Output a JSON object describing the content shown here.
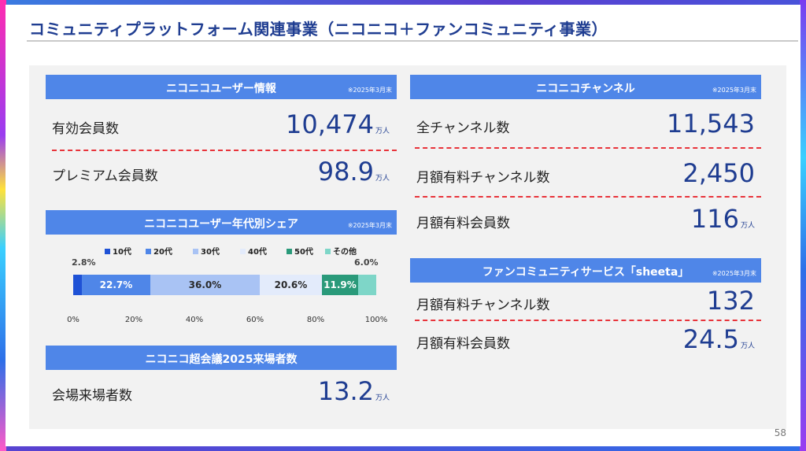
{
  "title": "コミュニティプラットフォーム関連事業（ニコニコ＋ファンコミュニティ事業）",
  "page_number": "58",
  "user_info": {
    "header": "ニコニコユーザー情報",
    "note": "※2025年3月末",
    "rows": [
      {
        "label": "有効会員数",
        "value": "10,474",
        "unit": "万人"
      },
      {
        "label": "プレミアム会員数",
        "value": "98.9",
        "unit": "万人"
      }
    ]
  },
  "age_share": {
    "header": "ニコニコユーザー年代別シェア",
    "note": "※2025年3月末"
  },
  "chart_data": {
    "type": "bar",
    "orientation": "horizontal-stacked",
    "series": [
      {
        "name": "10代",
        "value": 2.8,
        "label": "2.8%",
        "color": "#1f52d6"
      },
      {
        "name": "20代",
        "value": 22.7,
        "label": "22.7%",
        "color": "#4f86e8"
      },
      {
        "name": "30代",
        "value": 36.0,
        "label": "36.0%",
        "color": "#a9c3f4"
      },
      {
        "name": "40代",
        "value": 20.6,
        "label": "20.6%",
        "color": "#e3ebfb"
      },
      {
        "name": "50代",
        "value": 11.9,
        "label": "11.9%",
        "color": "#2a9a7a"
      },
      {
        "name": "その他",
        "value": 6.0,
        "label": "6.0%",
        "color": "#7ed6c8"
      }
    ],
    "xticks": [
      "0%",
      "20%",
      "40%",
      "60%",
      "80%",
      "100%"
    ],
    "xlim": [
      0,
      100
    ]
  },
  "chokaigi": {
    "header": "ニコニコ超会議2025来場者数",
    "label": "会場来場者数",
    "value": "13.2",
    "unit": "万人"
  },
  "channel": {
    "header": "ニコニコチャンネル",
    "note": "※2025年3月末",
    "rows": [
      {
        "label": "全チャンネル数",
        "value": "11,543",
        "unit": ""
      },
      {
        "label": "月額有料チャンネル数",
        "value": "2,450",
        "unit": ""
      },
      {
        "label": "月額有料会員数",
        "value": "116",
        "unit": "万人"
      }
    ]
  },
  "sheeta": {
    "header": "ファンコミュニティサービス「sheeta」",
    "note": "※2025年3月末",
    "rows": [
      {
        "label": "月額有料チャンネル数",
        "value": "132",
        "unit": ""
      },
      {
        "label": "月額有料会員数",
        "value": "24.5",
        "unit": "万人"
      }
    ]
  },
  "colors": {
    "accent": "#4f86e8",
    "title": "#1f3d91",
    "dash": "#e8333a"
  }
}
